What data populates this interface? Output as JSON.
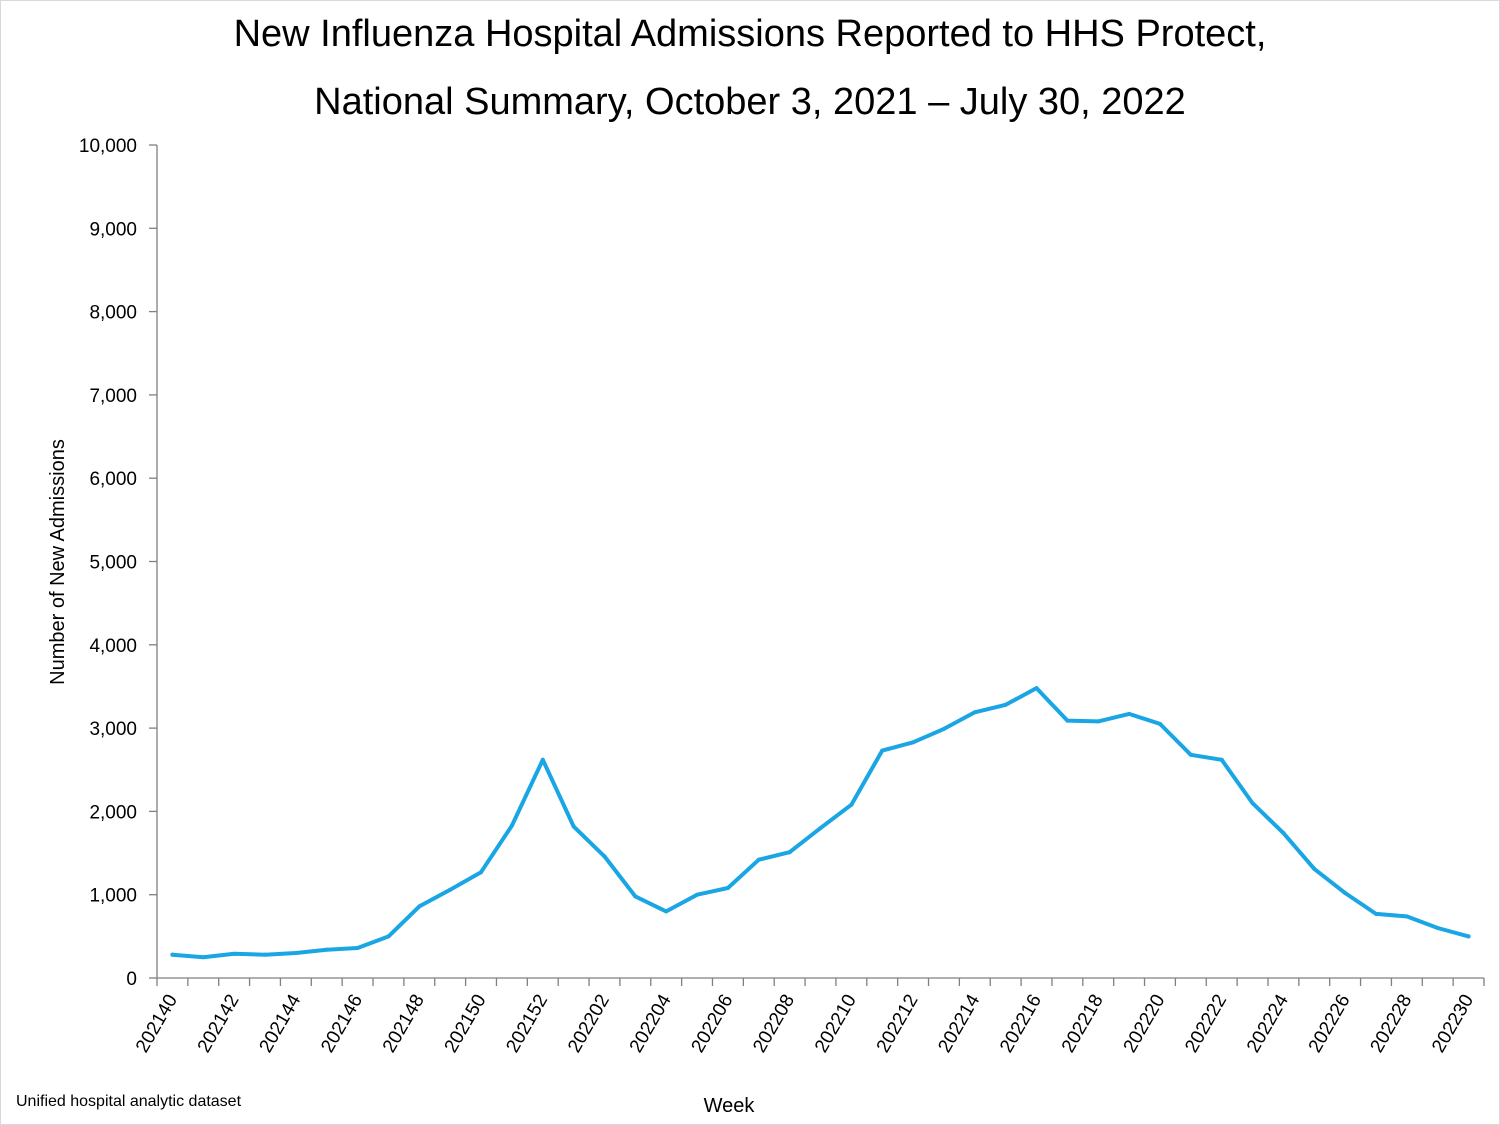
{
  "chart_data": {
    "type": "line",
    "title": "New Influenza Hospital Admissions Reported to HHS Protect,",
    "subtitle": "National Summary, October 3, 2021 – July 30, 2022",
    "xlabel": "Week",
    "ylabel": "Number of New Admissions",
    "source": "Unified hospital analytic dataset",
    "ylim": [
      0,
      10000
    ],
    "yticks": [
      0,
      1000,
      2000,
      3000,
      4000,
      5000,
      6000,
      7000,
      8000,
      9000,
      10000
    ],
    "ytick_labels": [
      "0",
      "1,000",
      "2,000",
      "3,000",
      "4,000",
      "5,000",
      "6,000",
      "7,000",
      "8,000",
      "9,000",
      "10,000"
    ],
    "x_tick_labels": [
      "202140",
      "202142",
      "202144",
      "202146",
      "202148",
      "202150",
      "202152",
      "202202",
      "202204",
      "202206",
      "202208",
      "202210",
      "202212",
      "202214",
      "202216",
      "202218",
      "202220",
      "202222",
      "202224",
      "202226",
      "202228",
      "202230"
    ],
    "x": [
      "202140",
      "202141",
      "202142",
      "202143",
      "202144",
      "202145",
      "202146",
      "202147",
      "202148",
      "202149",
      "202150",
      "202151",
      "202152",
      "202201",
      "202202",
      "202203",
      "202204",
      "202205",
      "202206",
      "202207",
      "202208",
      "202209",
      "202210",
      "202211",
      "202212",
      "202213",
      "202214",
      "202215",
      "202216",
      "202217",
      "202218",
      "202219",
      "202220",
      "202221",
      "202222",
      "202223",
      "202224",
      "202225",
      "202226",
      "202227",
      "202228",
      "202229",
      "202230"
    ],
    "series": [
      {
        "color": "#1aa6e4",
        "values": [
          280,
          250,
          290,
          280,
          300,
          340,
          360,
          500,
          860,
          1060,
          1270,
          1830,
          2620,
          1820,
          1460,
          980,
          800,
          1000,
          1080,
          1420,
          1510,
          1800,
          2080,
          2730,
          2830,
          2990,
          3190,
          3280,
          3480,
          3090,
          3080,
          3170,
          3050,
          2680,
          2620,
          2100,
          1740,
          1310,
          1020,
          770,
          740,
          600,
          500
        ]
      }
    ],
    "grid": false,
    "legend": "none"
  }
}
